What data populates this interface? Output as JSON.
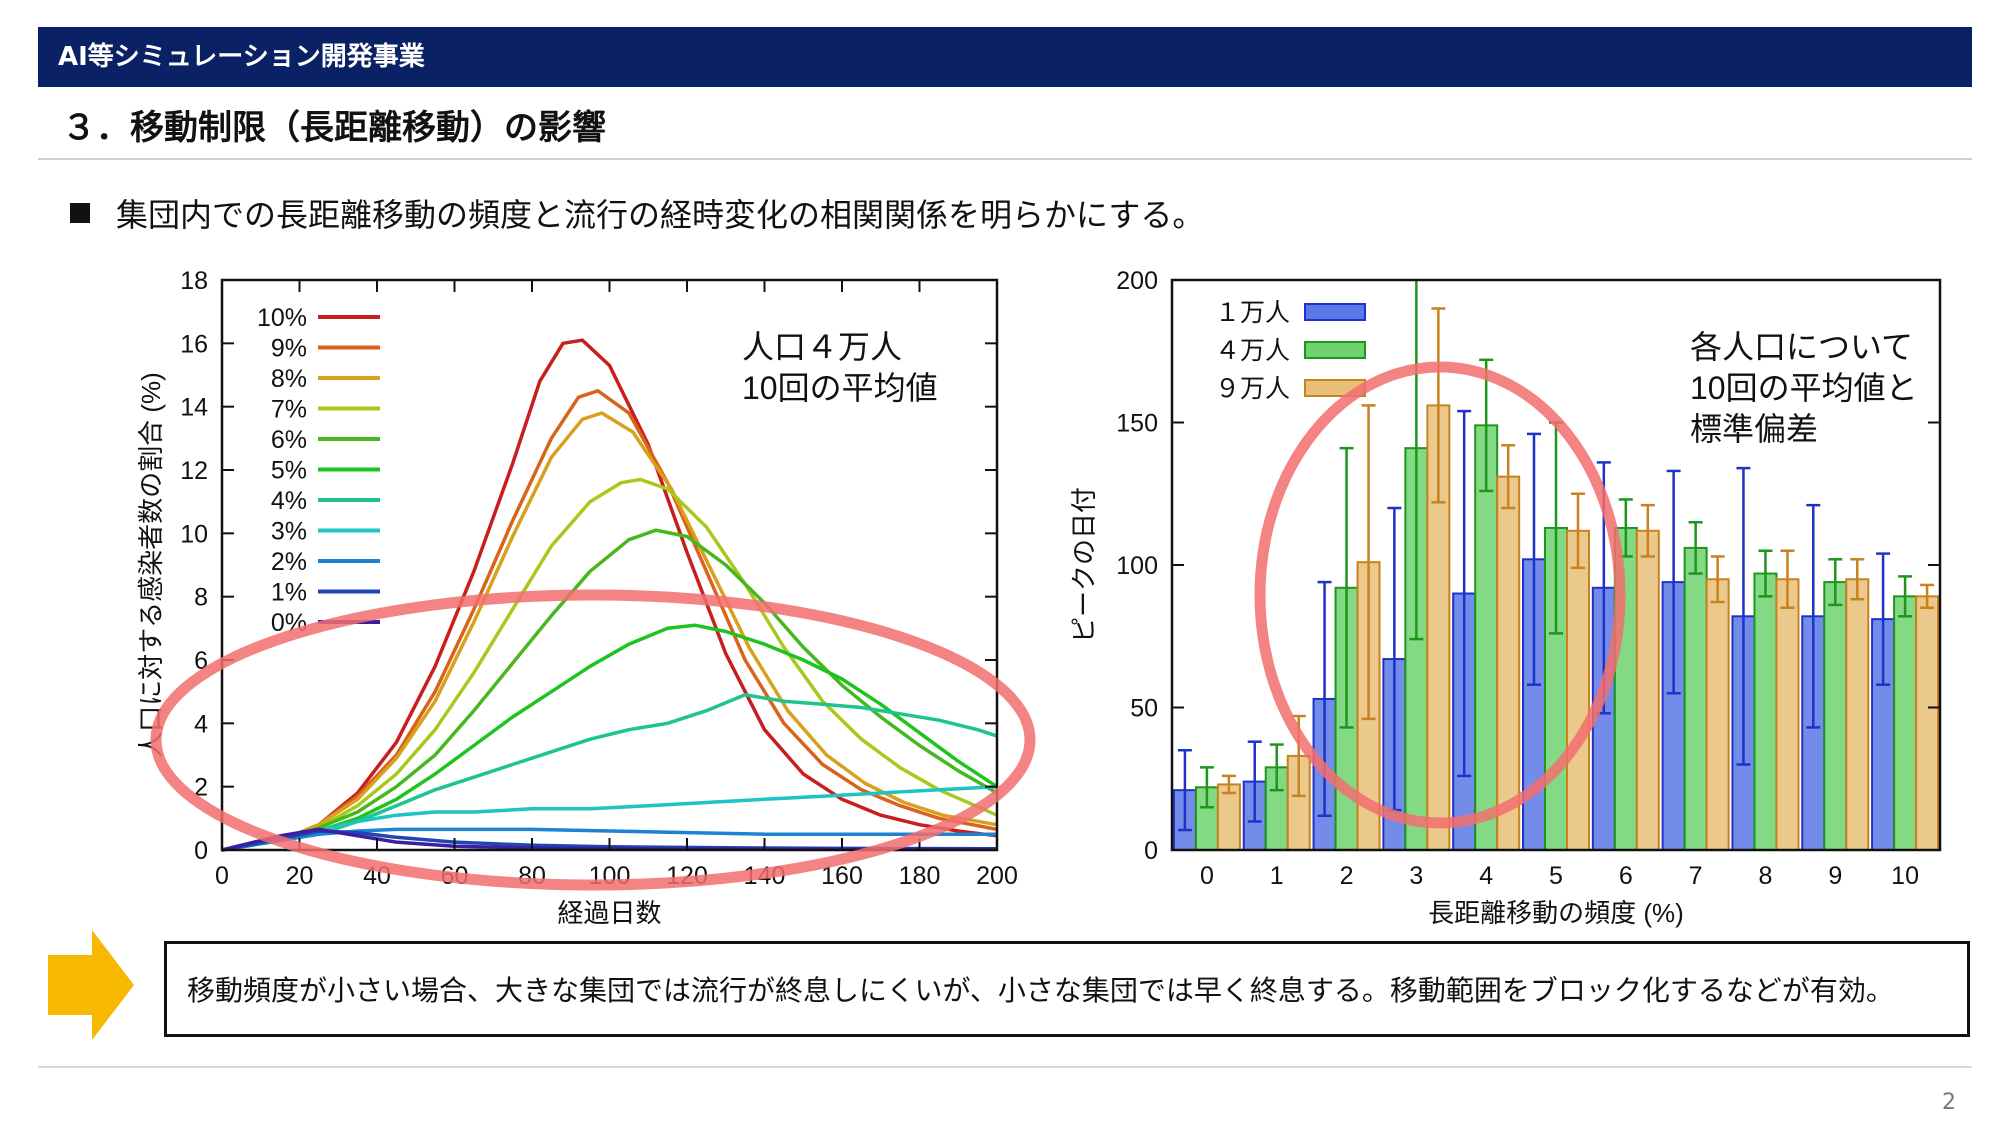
{
  "header": {
    "banner_title": "AI等シミュレーション開発事業",
    "section_title": "３．移動制限（長距離移動）の影響"
  },
  "bullet_text": "集団内での長距離移動の頻度と流行の経時変化の相関関係を明らかにする。",
  "conclusion_text": "移動頻度が小さい場合、大きな集団では流行が終息しにくいが、小さな集団では早く終息する。移動範囲をブロック化するなどが有効。",
  "page_number": "2",
  "colors": {
    "banner": "#0a2166",
    "highlight_ellipse": "#f26e6e",
    "arrow": "#f6b800"
  },
  "chart_data": [
    {
      "type": "line",
      "xlabel": "経過日数",
      "ylabel": "人口に対する感染者数の割合 (%)",
      "xlim": [
        0,
        200
      ],
      "ylim": [
        0,
        18
      ],
      "xticks": [
        0,
        20,
        40,
        60,
        80,
        100,
        120,
        140,
        160,
        180,
        200
      ],
      "yticks": [
        0,
        2,
        4,
        6,
        8,
        10,
        12,
        14,
        16,
        18
      ],
      "annotation": [
        "人口４万人",
        "10回の平均値"
      ],
      "legend_position": "top-left",
      "grid": false,
      "series": [
        {
          "name": "10%",
          "color": "#c81e1e",
          "points": [
            [
              0,
              0
            ],
            [
              15,
              0.3
            ],
            [
              25,
              0.8
            ],
            [
              35,
              1.8
            ],
            [
              45,
              3.4
            ],
            [
              55,
              5.8
            ],
            [
              65,
              8.8
            ],
            [
              75,
              12.2
            ],
            [
              82,
              14.8
            ],
            [
              88,
              16.0
            ],
            [
              93,
              16.1
            ],
            [
              100,
              15.3
            ],
            [
              110,
              12.8
            ],
            [
              120,
              9.4
            ],
            [
              130,
              6.2
            ],
            [
              140,
              3.8
            ],
            [
              150,
              2.4
            ],
            [
              160,
              1.6
            ],
            [
              170,
              1.1
            ],
            [
              180,
              0.8
            ],
            [
              190,
              0.6
            ],
            [
              200,
              0.45
            ]
          ]
        },
        {
          "name": "9%",
          "color": "#d8641c",
          "points": [
            [
              0,
              0
            ],
            [
              15,
              0.3
            ],
            [
              25,
              0.8
            ],
            [
              35,
              1.7
            ],
            [
              45,
              3.0
            ],
            [
              55,
              5.0
            ],
            [
              65,
              7.6
            ],
            [
              75,
              10.4
            ],
            [
              85,
              13.0
            ],
            [
              92,
              14.3
            ],
            [
              97,
              14.5
            ],
            [
              105,
              13.8
            ],
            [
              115,
              11.6
            ],
            [
              125,
              8.8
            ],
            [
              135,
              6.0
            ],
            [
              145,
              4.0
            ],
            [
              155,
              2.7
            ],
            [
              165,
              1.9
            ],
            [
              175,
              1.4
            ],
            [
              185,
              1.0
            ],
            [
              200,
              0.65
            ]
          ]
        },
        {
          "name": "8%",
          "color": "#d8a01c",
          "points": [
            [
              0,
              0
            ],
            [
              15,
              0.3
            ],
            [
              25,
              0.8
            ],
            [
              35,
              1.6
            ],
            [
              45,
              2.9
            ],
            [
              55,
              4.7
            ],
            [
              65,
              7.2
            ],
            [
              75,
              9.9
            ],
            [
              85,
              12.4
            ],
            [
              93,
              13.6
            ],
            [
              98,
              13.8
            ],
            [
              106,
              13.2
            ],
            [
              116,
              11.4
            ],
            [
              126,
              8.9
            ],
            [
              136,
              6.4
            ],
            [
              146,
              4.4
            ],
            [
              156,
              3.0
            ],
            [
              166,
              2.1
            ],
            [
              176,
              1.5
            ],
            [
              186,
              1.1
            ],
            [
              200,
              0.8
            ]
          ]
        },
        {
          "name": "7%",
          "color": "#a8c81e",
          "points": [
            [
              0,
              0
            ],
            [
              15,
              0.3
            ],
            [
              25,
              0.7
            ],
            [
              35,
              1.4
            ],
            [
              45,
              2.4
            ],
            [
              55,
              3.8
            ],
            [
              65,
              5.6
            ],
            [
              75,
              7.6
            ],
            [
              85,
              9.6
            ],
            [
              95,
              11.0
            ],
            [
              103,
              11.6
            ],
            [
              108,
              11.7
            ],
            [
              115,
              11.4
            ],
            [
              125,
              10.2
            ],
            [
              135,
              8.4
            ],
            [
              145,
              6.4
            ],
            [
              155,
              4.7
            ],
            [
              165,
              3.5
            ],
            [
              175,
              2.6
            ],
            [
              185,
              1.9
            ],
            [
              200,
              1.1
            ]
          ]
        },
        {
          "name": "6%",
          "color": "#46b81e",
          "points": [
            [
              0,
              0
            ],
            [
              15,
              0.3
            ],
            [
              25,
              0.7
            ],
            [
              35,
              1.2
            ],
            [
              45,
              2.0
            ],
            [
              55,
              3.0
            ],
            [
              65,
              4.4
            ],
            [
              75,
              5.9
            ],
            [
              85,
              7.4
            ],
            [
              95,
              8.8
            ],
            [
              105,
              9.8
            ],
            [
              112,
              10.1
            ],
            [
              120,
              9.9
            ],
            [
              130,
              9.0
            ],
            [
              140,
              7.8
            ],
            [
              150,
              6.4
            ],
            [
              160,
              5.2
            ],
            [
              170,
              4.2
            ],
            [
              180,
              3.3
            ],
            [
              190,
              2.5
            ],
            [
              200,
              1.8
            ]
          ]
        },
        {
          "name": "5%",
          "color": "#1ec41e",
          "points": [
            [
              0,
              0
            ],
            [
              15,
              0.3
            ],
            [
              25,
              0.6
            ],
            [
              35,
              1.0
            ],
            [
              45,
              1.6
            ],
            [
              55,
              2.4
            ],
            [
              65,
              3.3
            ],
            [
              75,
              4.2
            ],
            [
              85,
              5.0
            ],
            [
              95,
              5.8
            ],
            [
              105,
              6.5
            ],
            [
              115,
              7.0
            ],
            [
              122,
              7.1
            ],
            [
              130,
              6.9
            ],
            [
              140,
              6.5
            ],
            [
              150,
              6.0
            ],
            [
              160,
              5.4
            ],
            [
              170,
              4.6
            ],
            [
              180,
              3.7
            ],
            [
              190,
              2.8
            ],
            [
              200,
              2.0
            ]
          ]
        },
        {
          "name": "4%",
          "color": "#1ec48c",
          "points": [
            [
              0,
              0
            ],
            [
              15,
              0.3
            ],
            [
              25,
              0.5
            ],
            [
              35,
              0.9
            ],
            [
              45,
              1.4
            ],
            [
              55,
              1.9
            ],
            [
              65,
              2.3
            ],
            [
              75,
              2.7
            ],
            [
              85,
              3.1
            ],
            [
              95,
              3.5
            ],
            [
              105,
              3.8
            ],
            [
              115,
              4.0
            ],
            [
              125,
              4.4
            ],
            [
              135,
              4.9
            ],
            [
              145,
              4.7
            ],
            [
              155,
              4.6
            ],
            [
              165,
              4.5
            ],
            [
              175,
              4.3
            ],
            [
              185,
              4.1
            ],
            [
              195,
              3.8
            ],
            [
              200,
              3.6
            ]
          ]
        },
        {
          "name": "3%",
          "color": "#1ec4c4",
          "points": [
            [
              0,
              0
            ],
            [
              15,
              0.3
            ],
            [
              25,
              0.6
            ],
            [
              35,
              0.9
            ],
            [
              45,
              1.1
            ],
            [
              55,
              1.2
            ],
            [
              65,
              1.2
            ],
            [
              80,
              1.3
            ],
            [
              95,
              1.3
            ],
            [
              110,
              1.4
            ],
            [
              125,
              1.5
            ],
            [
              140,
              1.6
            ],
            [
              155,
              1.7
            ],
            [
              170,
              1.8
            ],
            [
              185,
              1.9
            ],
            [
              200,
              2.0
            ]
          ]
        },
        {
          "name": "2%",
          "color": "#1e82d2",
          "points": [
            [
              0,
              0
            ],
            [
              15,
              0.3
            ],
            [
              25,
              0.5
            ],
            [
              35,
              0.6
            ],
            [
              45,
              0.65
            ],
            [
              60,
              0.65
            ],
            [
              80,
              0.65
            ],
            [
              100,
              0.6
            ],
            [
              120,
              0.55
            ],
            [
              140,
              0.5
            ],
            [
              160,
              0.5
            ],
            [
              180,
              0.5
            ],
            [
              200,
              0.5
            ]
          ]
        },
        {
          "name": "1%",
          "color": "#1e46b4",
          "points": [
            [
              0,
              0
            ],
            [
              15,
              0.35
            ],
            [
              25,
              0.6
            ],
            [
              35,
              0.55
            ],
            [
              45,
              0.4
            ],
            [
              60,
              0.25
            ],
            [
              80,
              0.15
            ],
            [
              100,
              0.1
            ],
            [
              130,
              0.07
            ],
            [
              160,
              0.05
            ],
            [
              200,
              0.04
            ]
          ]
        },
        {
          "name": "0%",
          "color": "#3c1ea0",
          "points": [
            [
              0,
              0
            ],
            [
              15,
              0.45
            ],
            [
              25,
              0.65
            ],
            [
              35,
              0.45
            ],
            [
              45,
              0.25
            ],
            [
              60,
              0.12
            ],
            [
              80,
              0.06
            ],
            [
              110,
              0.03
            ],
            [
              150,
              0.02
            ],
            [
              200,
              0.02
            ]
          ]
        }
      ]
    },
    {
      "type": "bar",
      "xlabel": "長距離移動の頻度 (%)",
      "ylabel": "ピークの日付",
      "ylim": [
        0,
        200
      ],
      "yticks": [
        0,
        50,
        100,
        150,
        200
      ],
      "categories": [
        "0",
        "1",
        "2",
        "3",
        "4",
        "5",
        "6",
        "7",
        "8",
        "9",
        "10"
      ],
      "annotation": [
        "各人口について",
        "10回の平均値と",
        "標準偏差"
      ],
      "legend_position": "top-left",
      "grid": false,
      "series": [
        {
          "name": "１万人",
          "color": "#5a78e6",
          "edge": "#1e32c8",
          "values": [
            21,
            24,
            53,
            67,
            90,
            102,
            92,
            94,
            82,
            82,
            81
          ],
          "errors": [
            14,
            14,
            41,
            53,
            64,
            44,
            44,
            39,
            52,
            39,
            23
          ]
        },
        {
          "name": "４万人",
          "color": "#6ed26e",
          "edge": "#1e961e",
          "values": [
            22,
            29,
            92,
            141,
            149,
            113,
            113,
            106,
            97,
            94,
            89
          ],
          "errors": [
            7,
            8,
            49,
            67,
            23,
            37,
            10,
            9,
            8,
            8,
            7
          ]
        },
        {
          "name": "９万人",
          "color": "#e8be78",
          "edge": "#c8821e",
          "values": [
            23,
            33,
            101,
            156,
            131,
            112,
            112,
            95,
            95,
            95,
            89
          ],
          "errors": [
            3,
            14,
            55,
            34,
            11,
            13,
            9,
            8,
            10,
            7,
            4
          ]
        }
      ]
    }
  ]
}
